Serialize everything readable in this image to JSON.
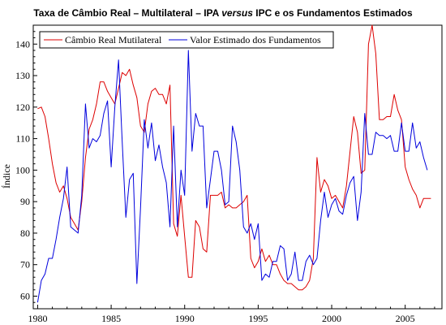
{
  "chart_data": {
    "type": "line",
    "title": {
      "before": "Taxa de Câmbio Real – Multilateral – IPA ",
      "emph": "versus",
      "after": " IPC e os Fundamentos Estimados"
    },
    "xlabel": "",
    "ylabel": "Índice",
    "xlim": [
      1979.7,
      2007.5
    ],
    "ylim": [
      56,
      146
    ],
    "x_ticks": [
      "1980",
      "1985",
      "1990",
      "1995",
      "2000",
      "2005"
    ],
    "y_ticks": [
      "60",
      "70",
      "80",
      "90",
      "100",
      "110",
      "120",
      "130",
      "140"
    ],
    "legend_position": "top-left",
    "grid": false,
    "series": [
      {
        "name": "Câmbio Real Mutilateral",
        "color": "#dd0000",
        "points": [
          [
            1980.0,
            119.5
          ],
          [
            1980.25,
            120
          ],
          [
            1980.5,
            117
          ],
          [
            1980.75,
            110
          ],
          [
            1981.0,
            102
          ],
          [
            1981.25,
            96
          ],
          [
            1981.5,
            93
          ],
          [
            1981.75,
            95
          ],
          [
            1982.0,
            91
          ],
          [
            1982.25,
            85
          ],
          [
            1982.5,
            83
          ],
          [
            1982.75,
            81
          ],
          [
            1983.0,
            90
          ],
          [
            1983.25,
            104
          ],
          [
            1983.5,
            113
          ],
          [
            1983.75,
            116
          ],
          [
            1984.0,
            121
          ],
          [
            1984.25,
            128
          ],
          [
            1984.5,
            128
          ],
          [
            1984.75,
            125
          ],
          [
            1985.0,
            123
          ],
          [
            1985.25,
            121
          ],
          [
            1985.5,
            126
          ],
          [
            1985.75,
            131
          ],
          [
            1986.0,
            130
          ],
          [
            1986.25,
            132
          ],
          [
            1986.5,
            127
          ],
          [
            1986.75,
            123
          ],
          [
            1987.0,
            114
          ],
          [
            1987.25,
            112
          ],
          [
            1987.5,
            121
          ],
          [
            1987.75,
            125
          ],
          [
            1988.0,
            126
          ],
          [
            1988.25,
            124
          ],
          [
            1988.5,
            124
          ],
          [
            1988.75,
            121
          ],
          [
            1989.0,
            127
          ],
          [
            1989.25,
            83
          ],
          [
            1989.5,
            79
          ],
          [
            1989.75,
            92
          ],
          [
            1990.0,
            79
          ],
          [
            1990.25,
            66
          ],
          [
            1990.5,
            66
          ],
          [
            1990.75,
            84
          ],
          [
            1991.0,
            82
          ],
          [
            1991.25,
            75
          ],
          [
            1991.5,
            74
          ],
          [
            1991.75,
            92
          ],
          [
            1992.0,
            92
          ],
          [
            1992.25,
            92
          ],
          [
            1992.5,
            93
          ],
          [
            1992.75,
            88
          ],
          [
            1993.0,
            89
          ],
          [
            1993.25,
            88
          ],
          [
            1993.5,
            88
          ],
          [
            1993.75,
            89
          ],
          [
            1994.0,
            90
          ],
          [
            1994.25,
            92
          ],
          [
            1994.5,
            72
          ],
          [
            1994.75,
            69
          ],
          [
            1995.0,
            71
          ],
          [
            1995.25,
            75
          ],
          [
            1995.5,
            71
          ],
          [
            1995.75,
            73
          ],
          [
            1996.0,
            70
          ],
          [
            1996.25,
            70
          ],
          [
            1996.5,
            67
          ],
          [
            1996.75,
            65
          ],
          [
            1997.0,
            64
          ],
          [
            1997.25,
            64
          ],
          [
            1997.5,
            63
          ],
          [
            1997.75,
            62
          ],
          [
            1998.0,
            62
          ],
          [
            1998.25,
            63
          ],
          [
            1998.5,
            65
          ],
          [
            1998.75,
            72
          ],
          [
            1999.0,
            104
          ],
          [
            1999.25,
            93
          ],
          [
            1999.5,
            97
          ],
          [
            1999.75,
            95
          ],
          [
            2000.0,
            91
          ],
          [
            2000.25,
            92
          ],
          [
            2000.5,
            90
          ],
          [
            2000.75,
            88
          ],
          [
            2001.0,
            95
          ],
          [
            2001.25,
            106
          ],
          [
            2001.5,
            117
          ],
          [
            2001.75,
            112
          ],
          [
            2002.0,
            99
          ],
          [
            2002.25,
            100
          ],
          [
            2002.5,
            140
          ],
          [
            2002.75,
            146
          ],
          [
            2003.0,
            137
          ],
          [
            2003.25,
            116
          ],
          [
            2003.5,
            116
          ],
          [
            2003.75,
            117
          ],
          [
            2004.0,
            117
          ],
          [
            2004.25,
            124
          ],
          [
            2004.5,
            119
          ],
          [
            2004.75,
            116
          ],
          [
            2005.0,
            101
          ],
          [
            2005.25,
            97
          ],
          [
            2005.5,
            94
          ],
          [
            2005.75,
            92
          ],
          [
            2006.0,
            88
          ],
          [
            2006.25,
            91
          ],
          [
            2006.5,
            91
          ],
          [
            2006.75,
            91
          ]
        ]
      },
      {
        "name": "Valor Estimado dos Fundamentos",
        "color": "#0000dd",
        "points": [
          [
            1980.0,
            58
          ],
          [
            1980.25,
            65
          ],
          [
            1980.5,
            67
          ],
          [
            1980.75,
            72
          ],
          [
            1981.0,
            72
          ],
          [
            1981.25,
            78
          ],
          [
            1981.5,
            85
          ],
          [
            1981.75,
            91
          ],
          [
            1982.0,
            101
          ],
          [
            1982.25,
            82
          ],
          [
            1982.5,
            81
          ],
          [
            1982.75,
            80
          ],
          [
            1983.0,
            92
          ],
          [
            1983.25,
            121
          ],
          [
            1983.5,
            107
          ],
          [
            1983.75,
            110
          ],
          [
            1984.0,
            109
          ],
          [
            1984.25,
            111
          ],
          [
            1984.5,
            118
          ],
          [
            1984.75,
            122
          ],
          [
            1985.0,
            101
          ],
          [
            1985.25,
            120
          ],
          [
            1985.5,
            135
          ],
          [
            1985.75,
            109
          ],
          [
            1986.0,
            85
          ],
          [
            1986.25,
            97
          ],
          [
            1986.5,
            99
          ],
          [
            1986.75,
            64
          ],
          [
            1987.0,
            88
          ],
          [
            1987.25,
            116
          ],
          [
            1987.5,
            107
          ],
          [
            1987.75,
            115
          ],
          [
            1988.0,
            103
          ],
          [
            1988.25,
            108
          ],
          [
            1988.5,
            101
          ],
          [
            1988.75,
            96
          ],
          [
            1989.0,
            82
          ],
          [
            1989.25,
            114
          ],
          [
            1989.5,
            82
          ],
          [
            1989.75,
            100
          ],
          [
            1990.0,
            92
          ],
          [
            1990.25,
            138
          ],
          [
            1990.5,
            106
          ],
          [
            1990.75,
            118
          ],
          [
            1991.0,
            114
          ],
          [
            1991.25,
            114
          ],
          [
            1991.5,
            88
          ],
          [
            1991.75,
            97
          ],
          [
            1992.0,
            106
          ],
          [
            1992.25,
            106
          ],
          [
            1992.5,
            100
          ],
          [
            1992.75,
            89
          ],
          [
            1993.0,
            90
          ],
          [
            1993.25,
            114
          ],
          [
            1993.5,
            109
          ],
          [
            1993.75,
            100
          ],
          [
            1994.0,
            82
          ],
          [
            1994.25,
            80
          ],
          [
            1994.5,
            83
          ],
          [
            1994.75,
            78
          ],
          [
            1995.0,
            83
          ],
          [
            1995.25,
            65
          ],
          [
            1995.5,
            67
          ],
          [
            1995.75,
            66
          ],
          [
            1996.0,
            71
          ],
          [
            1996.25,
            71
          ],
          [
            1996.5,
            76
          ],
          [
            1996.75,
            75
          ],
          [
            1997.0,
            65
          ],
          [
            1997.25,
            67
          ],
          [
            1997.5,
            74
          ],
          [
            1997.75,
            65
          ],
          [
            1998.0,
            65
          ],
          [
            1998.25,
            71
          ],
          [
            1998.5,
            73
          ],
          [
            1998.75,
            70
          ],
          [
            1999.0,
            72
          ],
          [
            1999.25,
            84
          ],
          [
            1999.5,
            93
          ],
          [
            1999.75,
            85
          ],
          [
            2000.0,
            89
          ],
          [
            2000.25,
            91
          ],
          [
            2000.5,
            87
          ],
          [
            2000.75,
            86
          ],
          [
            2001.0,
            92
          ],
          [
            2001.25,
            96
          ],
          [
            2001.5,
            98
          ],
          [
            2001.75,
            84
          ],
          [
            2002.0,
            93
          ],
          [
            2002.25,
            118
          ],
          [
            2002.5,
            105
          ],
          [
            2002.75,
            105
          ],
          [
            2003.0,
            112
          ],
          [
            2003.25,
            111
          ],
          [
            2003.5,
            111
          ],
          [
            2003.75,
            110
          ],
          [
            2004.0,
            111
          ],
          [
            2004.25,
            106
          ],
          [
            2004.5,
            106
          ],
          [
            2004.75,
            115
          ],
          [
            2005.0,
            106
          ],
          [
            2005.25,
            106
          ],
          [
            2005.5,
            115
          ],
          [
            2005.75,
            107
          ],
          [
            2006.0,
            109
          ],
          [
            2006.25,
            104
          ],
          [
            2006.5,
            100
          ]
        ]
      }
    ]
  }
}
